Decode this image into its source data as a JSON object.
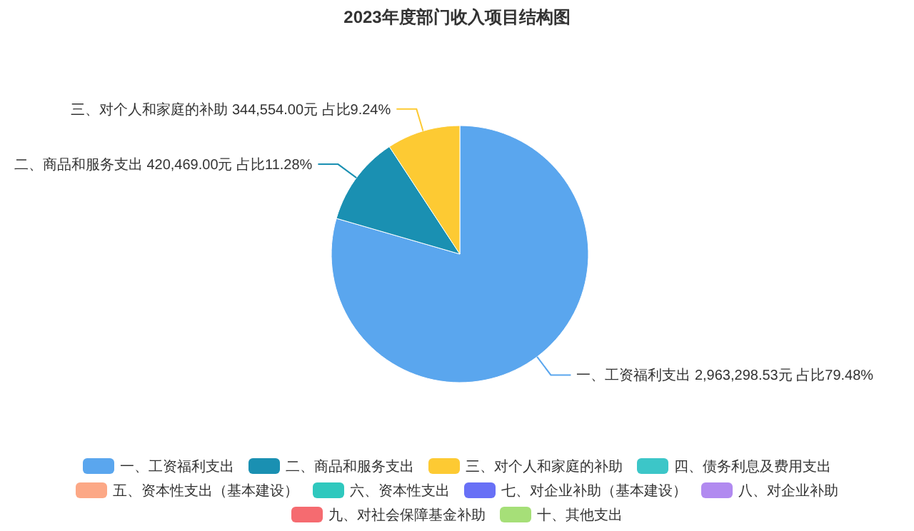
{
  "chart_data": {
    "type": "pie",
    "title": "2023年度部门收入项目结构图",
    "categories": [
      "一、工资福利支出",
      "二、商品和服务支出",
      "三、对个人和家庭的补助",
      "四、债务利息及费用支出",
      "五、资本性支出（基本建设）",
      "六、资本性支出",
      "七、对企业补助（基本建设）",
      "八、对企业补助",
      "九、对社会保障基金补助",
      "十、其他支出"
    ],
    "values": [
      2963298.53,
      420469.0,
      344554.0,
      0,
      0,
      0,
      0,
      0,
      0,
      0
    ],
    "value_labels": [
      "2,963,298.53元 占比79.48%",
      "420,469.00元 占比11.28%",
      "344,554.00元 占比9.24%",
      null,
      null,
      null,
      null,
      null,
      null,
      null
    ],
    "colors": [
      "#5aa6ee",
      "#1a90b2",
      "#fdca33",
      "#3cc6c8",
      "#fca886",
      "#2fc8be",
      "#6870f6",
      "#b18af0",
      "#f56b70",
      "#a6df78"
    ],
    "legend": "bottom"
  }
}
